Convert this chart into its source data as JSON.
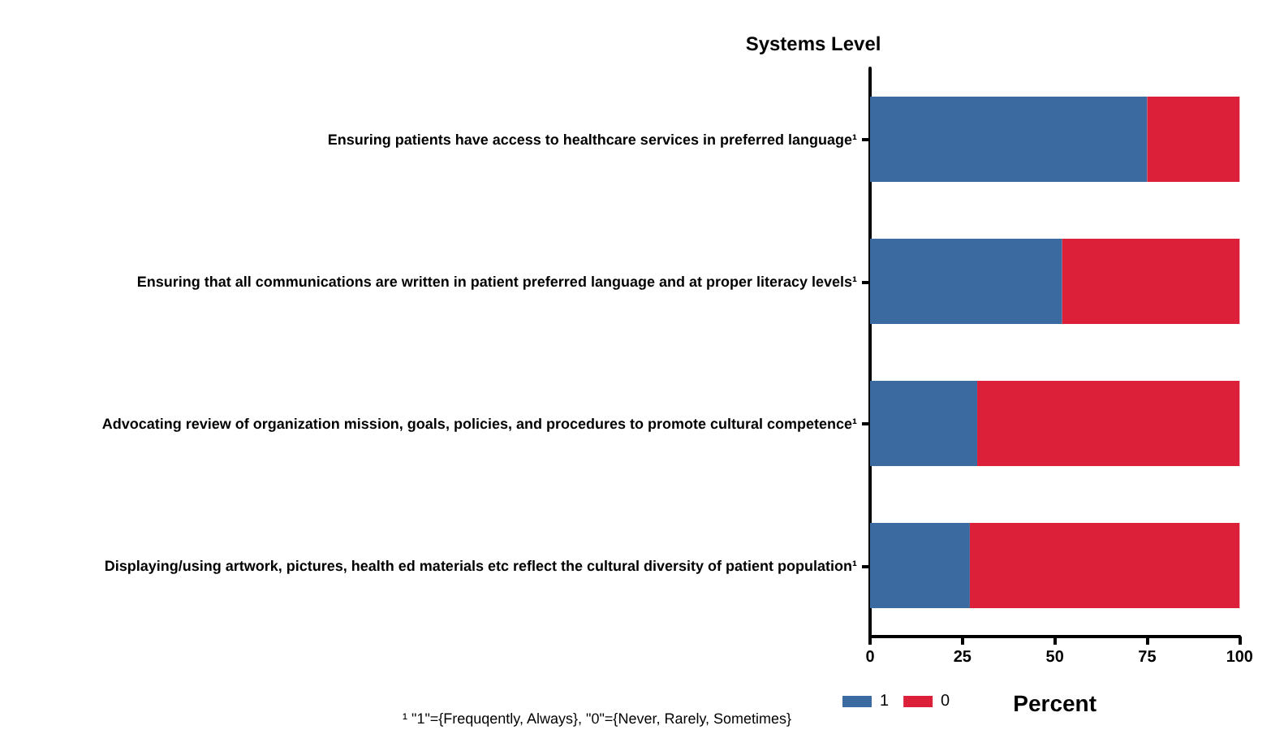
{
  "chart_data": {
    "type": "bar",
    "orientation": "horizontal",
    "stacked": true,
    "title": "Systems Level",
    "xlabel": "Percent",
    "categories": [
      "Ensuring patients have access to healthcare services in preferred language¹",
      "Ensuring that all communications are written in patient preferred language and at proper literacy levels¹",
      "Advocating review of organization mission, goals, policies, and procedures to promote cultural competence¹",
      "Displaying/using artwork, pictures, health ed materials etc reflect the cultural diversity of patient population¹"
    ],
    "series": [
      {
        "name": "1",
        "color": "#3b6aa0",
        "values": [
          75,
          52,
          29,
          27
        ]
      },
      {
        "name": "0",
        "color": "#dc2039",
        "values": [
          25,
          48,
          71,
          73
        ]
      }
    ],
    "xlim": [
      0,
      100
    ],
    "xticks": [
      0,
      25,
      50,
      75,
      100
    ],
    "grid": false,
    "legend": "bottom left",
    "annotations": [
      "¹ \"1\"={Frequqently, Always}, \"0\"={Never, Rarely, Sometimes}"
    ]
  }
}
